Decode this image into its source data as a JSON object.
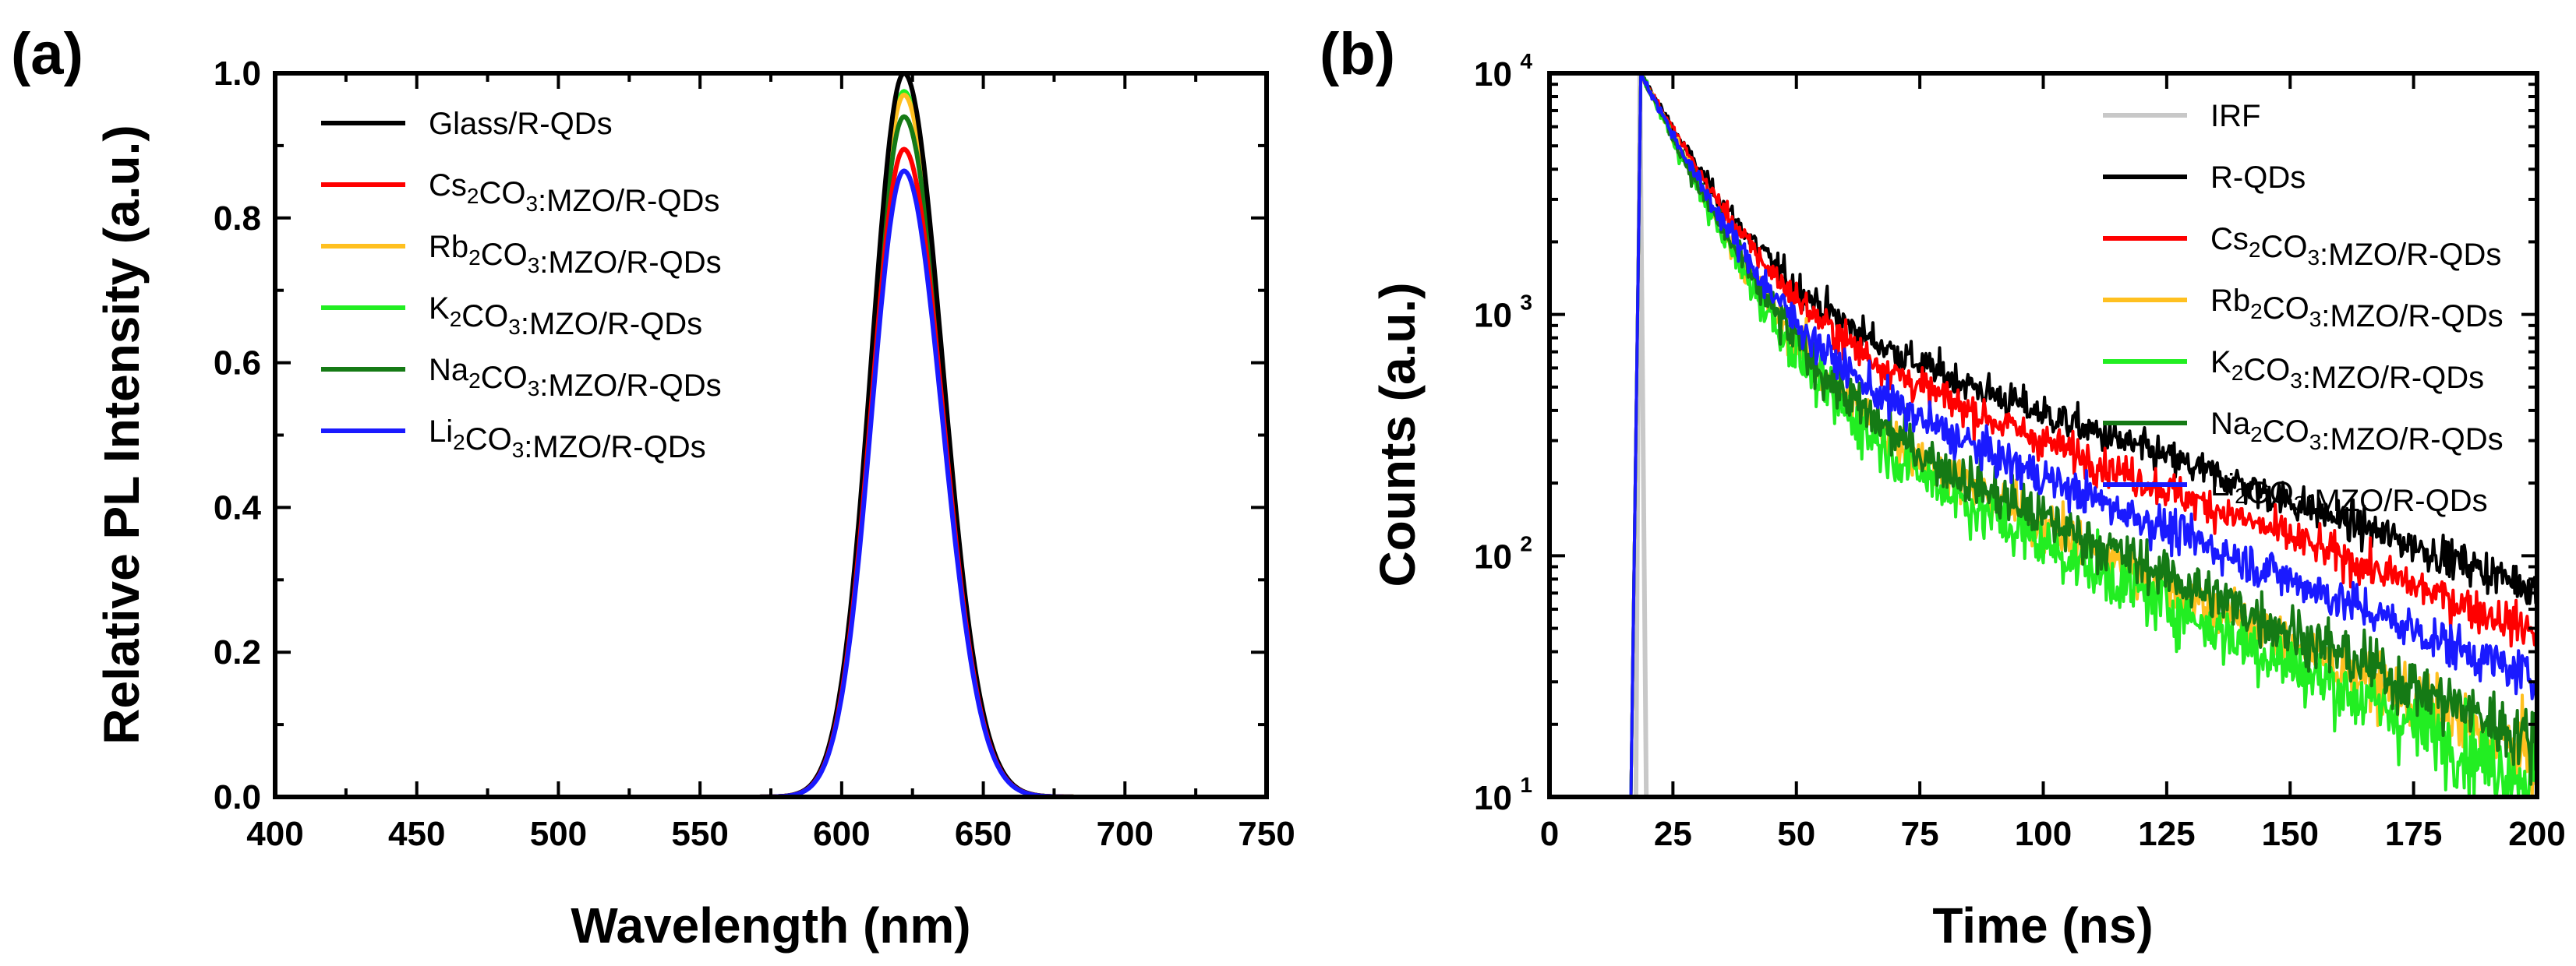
{
  "figure": {
    "panels": [
      {
        "label": "(a)"
      },
      {
        "label": "(b)"
      }
    ]
  },
  "chart_data": [
    {
      "type": "line",
      "panel": "(a)",
      "title": "",
      "xlabel": "Wavelength (nm)",
      "ylabel": "Relative PL Intensity (a.u.)",
      "xlim": [
        400,
        750
      ],
      "ylim": [
        0,
        1.0
      ],
      "xticks": [
        "400",
        "450",
        "500",
        "550",
        "600",
        "650",
        "700",
        "750"
      ],
      "yticks": [
        "0.0",
        "0.2",
        "0.4",
        "0.6",
        "0.8",
        "1.0"
      ],
      "legend_position": "top-left",
      "series": [
        {
          "name": "Glass/R-QDs",
          "legend_parts": [
            [
              "Glass/R-QDs",
              false
            ]
          ],
          "color": "#000000",
          "peak": 1.0,
          "center": 622,
          "sigma_left": 11.5,
          "sigma_right": 13.5
        },
        {
          "name": "Cs2CO3:MZO/R-QDs",
          "legend_parts": [
            [
              "Cs",
              false
            ],
            [
              "2",
              true
            ],
            [
              "CO",
              false
            ],
            [
              "3",
              true
            ],
            [
              ":MZO/R-QDs",
              false
            ]
          ],
          "color": "#ff0000",
          "peak": 0.895,
          "center": 622,
          "sigma_left": 11.5,
          "sigma_right": 13.5
        },
        {
          "name": "Rb2CO3:MZO/R-QDs",
          "legend_parts": [
            [
              "Rb",
              false
            ],
            [
              "2",
              true
            ],
            [
              "CO",
              false
            ],
            [
              "3",
              true
            ],
            [
              ":MZO/R-QDs",
              false
            ]
          ],
          "color": "#ffc020",
          "peak": 0.97,
          "center": 622,
          "sigma_left": 11.5,
          "sigma_right": 13.5
        },
        {
          "name": "K2CO3:MZO/R-QDs",
          "legend_parts": [
            [
              "K",
              false
            ],
            [
              "2",
              true
            ],
            [
              "CO",
              false
            ],
            [
              "3",
              true
            ],
            [
              ":MZO/R-QDs",
              false
            ]
          ],
          "color": "#22ee22",
          "peak": 0.975,
          "center": 622,
          "sigma_left": 11.5,
          "sigma_right": 13.5
        },
        {
          "name": "Na2CO3:MZO/R-QDs",
          "legend_parts": [
            [
              "Na",
              false
            ],
            [
              "2",
              true
            ],
            [
              "CO",
              false
            ],
            [
              "3",
              true
            ],
            [
              ":MZO/R-QDs",
              false
            ]
          ],
          "color": "#157a15",
          "peak": 0.94,
          "center": 622,
          "sigma_left": 11.5,
          "sigma_right": 13.5
        },
        {
          "name": "Li2CO3:MZO/R-QDs",
          "legend_parts": [
            [
              "Li",
              false
            ],
            [
              "2",
              true
            ],
            [
              "CO",
              false
            ],
            [
              "3",
              true
            ],
            [
              ":MZO/R-QDs",
              false
            ]
          ],
          "color": "#1a1aff",
          "peak": 0.865,
          "center": 622,
          "sigma_left": 11.5,
          "sigma_right": 13.5
        }
      ]
    },
    {
      "type": "line",
      "panel": "(b)",
      "title": "",
      "xlabel": "Time (ns)",
      "ylabel": "Counts (a.u.)",
      "xlim": [
        0,
        200
      ],
      "ylim": [
        10,
        10000
      ],
      "yscale": "log",
      "xticks": [
        "0",
        "25",
        "50",
        "75",
        "100",
        "125",
        "150",
        "175",
        "200"
      ],
      "yticks": [
        {
          "base": "10",
          "exp": "1"
        },
        {
          "base": "10",
          "exp": "2"
        },
        {
          "base": "10",
          "exp": "3"
        },
        {
          "base": "10",
          "exp": "4"
        }
      ],
      "legend_position": "top-right",
      "series": [
        {
          "name": "IRF",
          "legend_parts": [
            [
              "IRF",
              false
            ]
          ],
          "color": "#c8c8c8",
          "kind": "irf",
          "rise_start": 17.5,
          "peak_time": 18.3,
          "end_time": 19.6
        },
        {
          "name": "R-QDs",
          "legend_parts": [
            [
              "R-QDs",
              false
            ]
          ],
          "color": "#000000",
          "kind": "decay",
          "rise_start": 16.5,
          "peak_time": 18.5,
          "fast_amp": 8500,
          "fast_tau": 10.5,
          "slow_amp": 1500,
          "slow_tau": 60,
          "noise": 0.12
        },
        {
          "name": "Cs2CO3:MZO/R-QDs",
          "legend_parts": [
            [
              "Cs",
              false
            ],
            [
              "2",
              true
            ],
            [
              "CO",
              false
            ],
            [
              "3",
              true
            ],
            [
              ":MZO/R-QDs",
              false
            ]
          ],
          "color": "#ff0000",
          "kind": "decay",
          "rise_start": 16.5,
          "peak_time": 18.5,
          "fast_amp": 8700,
          "fast_tau": 10.5,
          "slow_amp": 1300,
          "slow_tau": 55,
          "noise": 0.12
        },
        {
          "name": "Rb2CO3:MZO/R-QDs",
          "legend_parts": [
            [
              "Rb",
              false
            ],
            [
              "2",
              true
            ],
            [
              "CO",
              false
            ],
            [
              "3",
              true
            ],
            [
              ":MZO/R-QDs",
              false
            ]
          ],
          "color": "#ffc020",
          "kind": "decay",
          "rise_start": 16.5,
          "peak_time": 18.5,
          "fast_amp": 9200,
          "fast_tau": 9.8,
          "slow_amp": 800,
          "slow_tau": 45,
          "noise": 0.16
        },
        {
          "name": "K2CO3:MZO/R-QDs",
          "legend_parts": [
            [
              "K",
              false
            ],
            [
              "2",
              true
            ],
            [
              "CO",
              false
            ],
            [
              "3",
              true
            ],
            [
              ":MZO/R-QDs",
              false
            ]
          ],
          "color": "#22ee22",
          "kind": "decay",
          "rise_start": 16.5,
          "peak_time": 18.5,
          "fast_amp": 9300,
          "fast_tau": 9.6,
          "slow_amp": 700,
          "slow_tau": 44,
          "noise": 0.18
        },
        {
          "name": "Na2CO3:MZO/R-QDs",
          "legend_parts": [
            [
              "Na",
              false
            ],
            [
              "2",
              true
            ],
            [
              "CO",
              false
            ],
            [
              "3",
              true
            ],
            [
              ":MZO/R-QDs",
              false
            ]
          ],
          "color": "#157a15",
          "kind": "decay",
          "rise_start": 16.5,
          "peak_time": 18.5,
          "fast_amp": 9200,
          "fast_tau": 9.8,
          "slow_amp": 800,
          "slow_tau": 47,
          "noise": 0.16
        },
        {
          "name": "Li2CO3:MZO/R-QDs",
          "legend_parts": [
            [
              "Li",
              false
            ],
            [
              "2",
              true
            ],
            [
              "CO",
              false
            ],
            [
              "3",
              true
            ],
            [
              ":MZO/R-QDs",
              false
            ]
          ],
          "color": "#1a1aff",
          "kind": "decay",
          "rise_start": 16.5,
          "peak_time": 18.5,
          "fast_amp": 9000,
          "fast_tau": 10.0,
          "slow_amp": 1000,
          "slow_tau": 52,
          "noise": 0.13
        }
      ]
    }
  ]
}
